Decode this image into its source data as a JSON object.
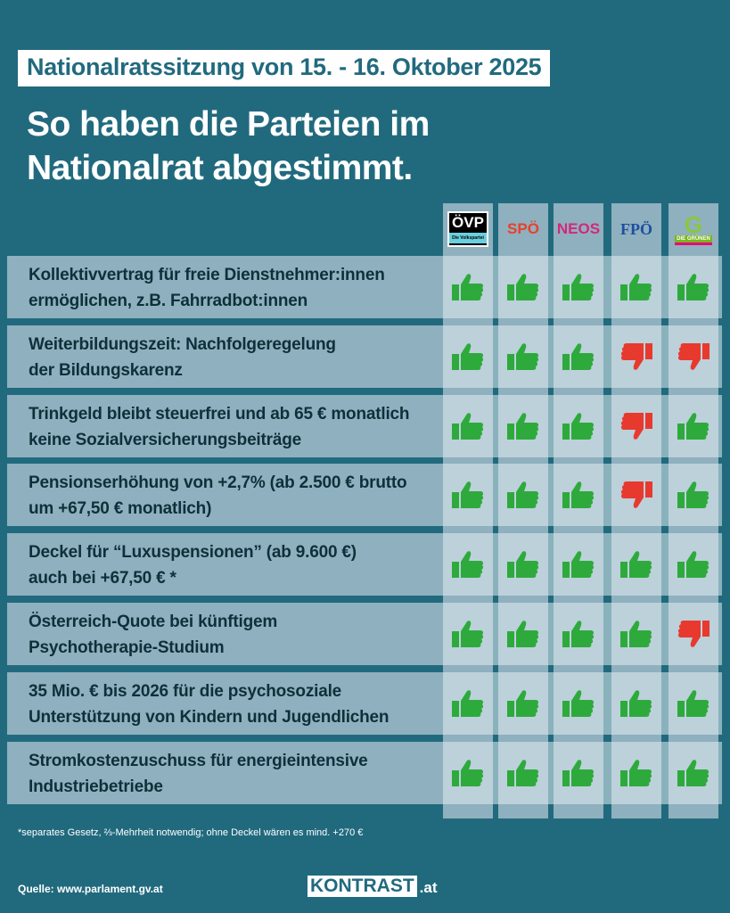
{
  "kicker": "Nationalratssitzung von 15. - 16. Oktober 2025",
  "title": "So haben die Parteien im Nationalrat abgestimmt.",
  "parties": [
    {
      "name": "ÖVP",
      "sub": "Die Volkspartei",
      "color": "#000000"
    },
    {
      "name": "SPÖ",
      "color": "#e8412c"
    },
    {
      "name": "NEOS",
      "color": "#d3287a"
    },
    {
      "name": "FPÖ",
      "color": "#1d4fa0"
    },
    {
      "name": "DIE GRÜNEN",
      "color": "#7ab51d"
    }
  ],
  "colors": {
    "yes": "#2eaa3c",
    "no": "#e8392f",
    "background": "#216a7e"
  },
  "rows": [
    {
      "line1": "Kollektivvertrag für freie Dienstnehmer:innen",
      "line2": "ermöglichen, z.B. Fahrradbot:innen",
      "votes": [
        "yes",
        "yes",
        "yes",
        "yes",
        "yes"
      ]
    },
    {
      "line1": "Weiterbildungszeit: Nachfolgeregelung",
      "line2": "der Bildungskarenz",
      "votes": [
        "yes",
        "yes",
        "yes",
        "no",
        "no"
      ]
    },
    {
      "line1": "Trinkgeld bleibt steuerfrei und ab 65 € monatlich",
      "line2": "keine Sozialversicherungsbeiträge",
      "votes": [
        "yes",
        "yes",
        "yes",
        "no",
        "yes"
      ]
    },
    {
      "line1": "Pensionserhöhung von +2,7% (ab 2.500 € brutto",
      "line2": "um +67,50 € monatlich)",
      "votes": [
        "yes",
        "yes",
        "yes",
        "no",
        "yes"
      ]
    },
    {
      "line1": "Deckel für “Luxuspensionen” (ab 9.600 €)",
      "line2": "auch bei +67,50 € *",
      "votes": [
        "yes",
        "yes",
        "yes",
        "yes",
        "yes"
      ]
    },
    {
      "line1": "Österreich-Quote bei künftigem",
      "line2": "Psychotherapie-Studium",
      "votes": [
        "yes",
        "yes",
        "yes",
        "yes",
        "no"
      ]
    },
    {
      "line1": "35 Mio. € bis 2026 für die psychosoziale",
      "line2": "Unterstützung von Kindern und Jugendlichen",
      "votes": [
        "yes",
        "yes",
        "yes",
        "yes",
        "yes"
      ]
    },
    {
      "line1": "Stromkostenzuschuss für energieintensive",
      "line2": "Industriebetriebe",
      "votes": [
        "yes",
        "yes",
        "yes",
        "yes",
        "yes"
      ]
    }
  ],
  "footnote": "*separates Gesetz, ⅔-Mehrheit notwendig; ohne Deckel wären es mind. +270 €",
  "source": "Quelle: www.parlament.gv.at",
  "brand": {
    "main": "KONTRAST",
    "suffix": ".at"
  }
}
